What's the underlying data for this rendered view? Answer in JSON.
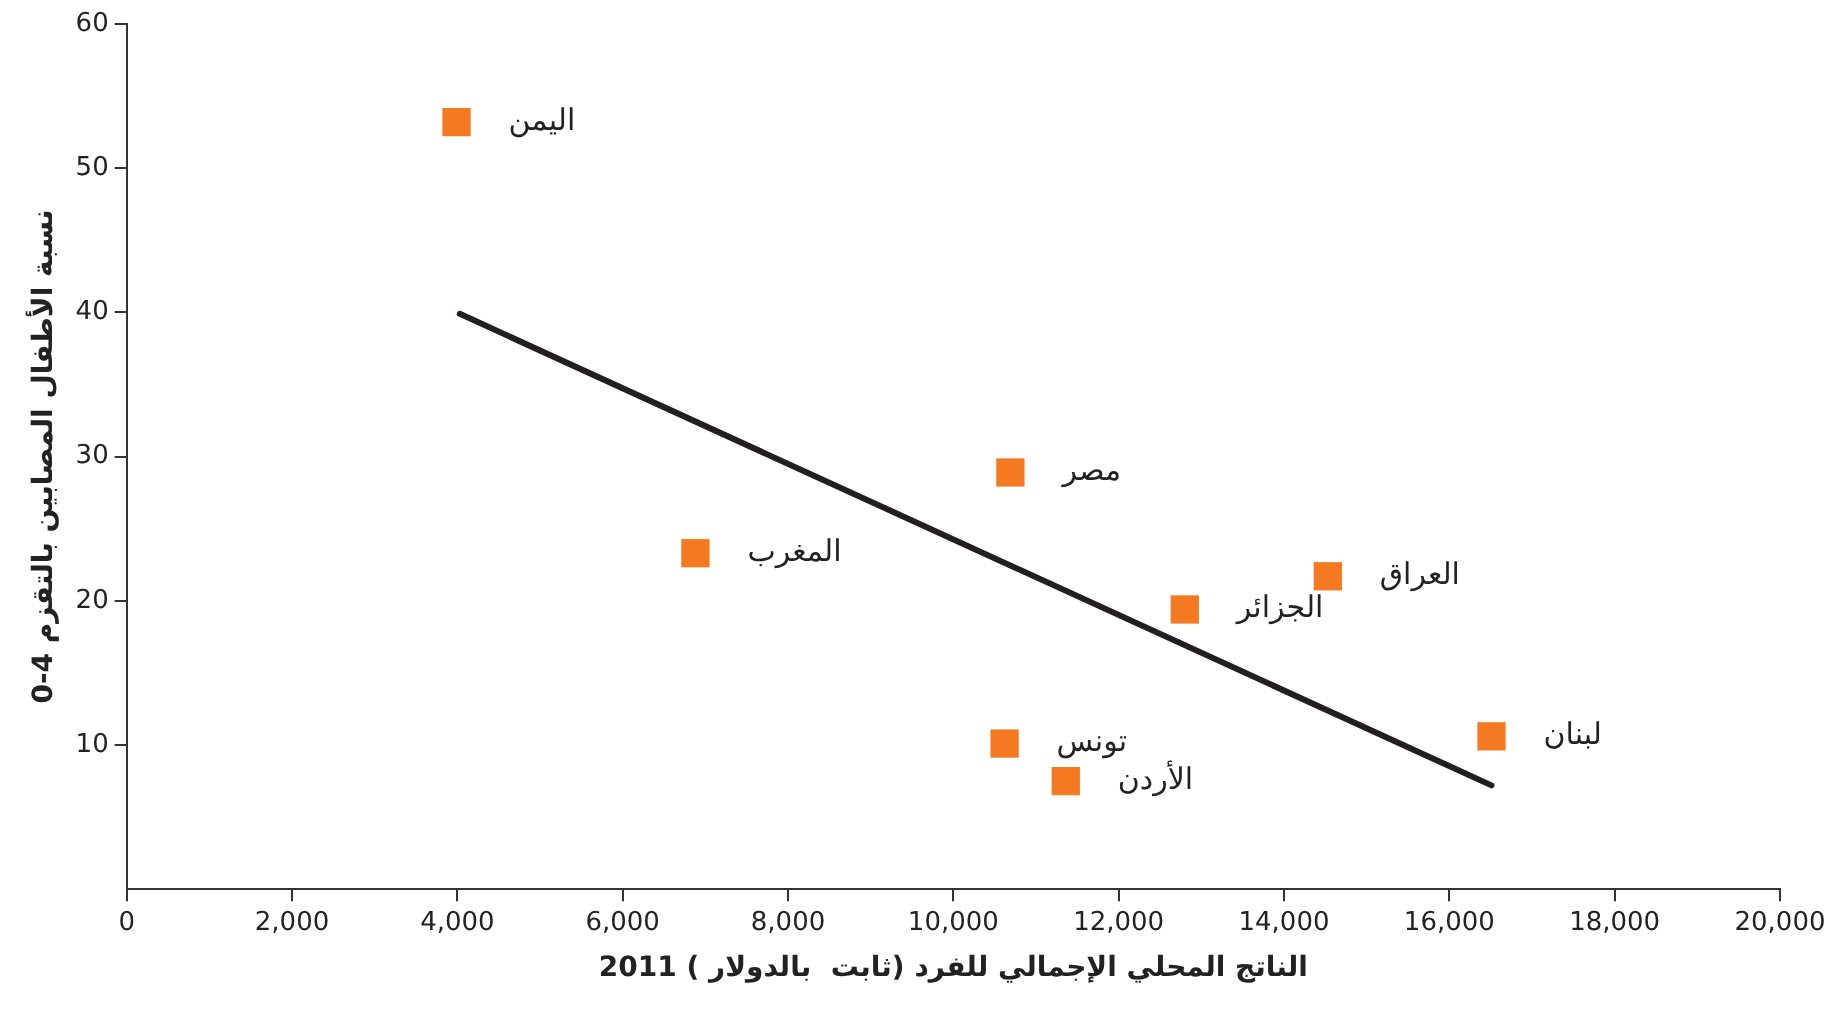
{
  "chart_data": {
    "type": "scatter",
    "xlabel": "الناتج المحلي الإجمالي للفرد (ثابت  بالدولار ) 2011",
    "ylabel": "نسبة الأطفال المصابين بالتقزم 4-0",
    "xlim": [
      0,
      20000
    ],
    "xticks": [
      {
        "value": 0,
        "label": "0"
      },
      {
        "value": 2000,
        "label": "2,000"
      },
      {
        "value": 4000,
        "label": "4,000"
      },
      {
        "value": 6000,
        "label": "6,000"
      },
      {
        "value": 8000,
        "label": "8,000"
      },
      {
        "value": 10000,
        "label": "10,000"
      },
      {
        "value": 12000,
        "label": "12,000"
      },
      {
        "value": 14000,
        "label": "14,000"
      },
      {
        "value": 16000,
        "label": "16,000"
      },
      {
        "value": 18000,
        "label": "18,000"
      },
      {
        "value": 20000,
        "label": "20,000"
      }
    ],
    "ylim": [
      0,
      60
    ],
    "yticks": [
      10,
      20,
      30,
      40,
      50,
      60
    ],
    "grid": false,
    "legend": false,
    "marker": "square",
    "series": [
      {
        "type": "scatter",
        "color": "#f47920",
        "x": [
          3990,
          6880,
          10690,
          12800,
          14530,
          16510,
          10620,
          11360
        ],
        "values": [
          53.2,
          23.3,
          28.9,
          19.4,
          21.7,
          10.6,
          10.1,
          7.5
        ]
      },
      {
        "type": "line",
        "color": "#231f20",
        "line_style": "solid",
        "marker": "none",
        "x": [
          4030,
          16510
        ],
        "values": [
          39.9,
          7.2
        ]
      }
    ],
    "annotations": [
      {
        "text": "اليمن",
        "x": 3990,
        "y": 53.2
      },
      {
        "text": "المغرب",
        "x": 6880,
        "y": 23.3
      },
      {
        "text": "مصر",
        "x": 10690,
        "y": 28.9
      },
      {
        "text": "الجزائر",
        "x": 12800,
        "y": 19.4
      },
      {
        "text": "العراق",
        "x": 14530,
        "y": 21.7
      },
      {
        "text": "لبنان",
        "x": 16510,
        "y": 10.6
      },
      {
        "text": "تونس",
        "x": 10620,
        "y": 10.1
      },
      {
        "text": "الأردن",
        "x": 11360,
        "y": 7.5
      }
    ]
  }
}
